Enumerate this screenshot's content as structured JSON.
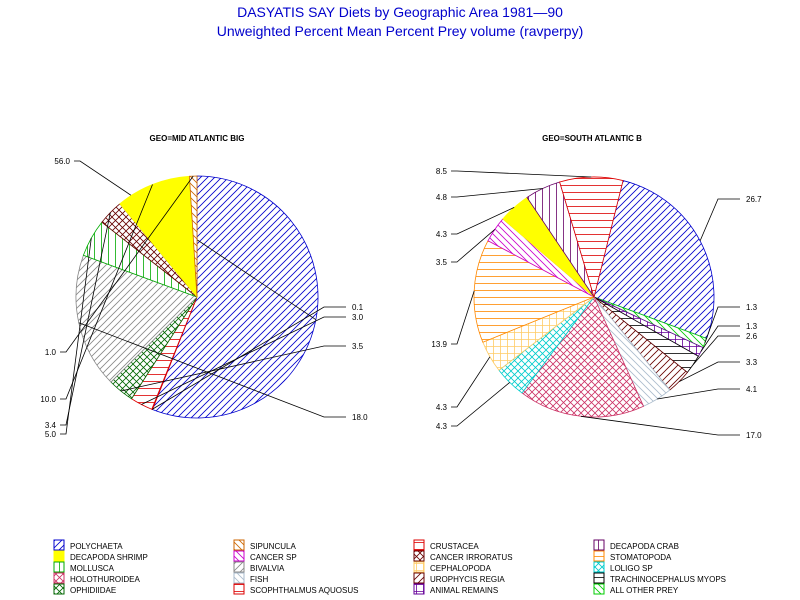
{
  "title": "DASYATIS SAY Diets by Geographic Area 1981—90",
  "subtitle": "Unweighted Percent Mean Percent Prey  volume (ravperpy)",
  "legend": [
    {
      "name": "POLYCHAETA",
      "color": "#0000cc",
      "pattern": "diag-up"
    },
    {
      "name": "SIPUNCULA",
      "color": "#cc6600",
      "pattern": "diag-down"
    },
    {
      "name": "CRUSTACEA",
      "color": "#dd0000",
      "pattern": "horizontal"
    },
    {
      "name": "DECAPODA CRAB",
      "color": "#660066",
      "pattern": "vertical"
    },
    {
      "name": "DECAPODA SHRIMP",
      "color": "#ffff00",
      "pattern": "solid"
    },
    {
      "name": "CANCER SP",
      "color": "#cc00cc",
      "pattern": "diag-down"
    },
    {
      "name": "CANCER IRRORATUS",
      "color": "#660000",
      "pattern": "crosshatch"
    },
    {
      "name": "STOMATOPODA",
      "color": "#ff8800",
      "pattern": "horizontal"
    },
    {
      "name": "MOLLUSCA",
      "color": "#00aa00",
      "pattern": "vertical"
    },
    {
      "name": "BIVALVIA",
      "color": "#888888",
      "pattern": "diag-up"
    },
    {
      "name": "CEPHALOPODA",
      "color": "#ffcc66",
      "pattern": "grid"
    },
    {
      "name": "LOLIGO SP",
      "color": "#00cccc",
      "pattern": "crosshatch"
    },
    {
      "name": "HOLOTHUROIDEA",
      "color": "#cc3366",
      "pattern": "crosshatch"
    },
    {
      "name": "FISH",
      "color": "#aabbcc",
      "pattern": "diag-down"
    },
    {
      "name": "UROPHYCIS REGIA",
      "color": "#660000",
      "pattern": "diag-up"
    },
    {
      "name": "TRACHINOCEPHALUS MYOPS",
      "color": "#000000",
      "pattern": "horizontal"
    },
    {
      "name": "OPHIDIIDAE",
      "color": "#006600",
      "pattern": "crosshatch"
    },
    {
      "name": "SCOPHTHALMUS AQUOSUS",
      "color": "#dd0000",
      "pattern": "horizontal"
    },
    {
      "name": "ANIMAL REMAINS",
      "color": "#660099",
      "pattern": "grid"
    },
    {
      "name": "ALL OTHER PREY",
      "color": "#00cc00",
      "pattern": "diag-down"
    }
  ],
  "chart_data": [
    {
      "type": "pie",
      "title": "GEO=MID ATLANTIC BIG",
      "slices": [
        {
          "label": "POLYCHAETA",
          "value": 56.0,
          "text": "56.0"
        },
        {
          "label": "SCOPHTHALMUS AQUOSUS",
          "value": 0.1,
          "text": "0.1"
        },
        {
          "label": "CRUSTACEA",
          "value": 3.0,
          "text": "3.0"
        },
        {
          "label": "OPHIDIIDAE",
          "value": 3.5,
          "text": "3.5"
        },
        {
          "label": "BIVALVIA",
          "value": 18.0,
          "text": "18.0"
        },
        {
          "label": "MOLLUSCA",
          "value": 5.0,
          "text": "5.0"
        },
        {
          "label": "CANCER IRRORATUS",
          "value": 3.4,
          "text": "3.4"
        },
        {
          "label": "DECAPODA SHRIMP",
          "value": 10.0,
          "text": "10.0"
        },
        {
          "label": "SIPUNCULA",
          "value": 1.0,
          "text": "1.0"
        }
      ]
    },
    {
      "type": "pie",
      "title": "GEO=SOUTH ATLANTIC B",
      "slices": [
        {
          "label": "POLYCHAETA",
          "value": 26.7,
          "text": "26.7"
        },
        {
          "label": "ALL OTHER PREY",
          "value": 1.3,
          "text": "1.3"
        },
        {
          "label": "ANIMAL REMAINS",
          "value": 1.3,
          "text": "1.3"
        },
        {
          "label": "TRACHINOCEPHALUS MYOPS",
          "value": 2.6,
          "text": "2.6"
        },
        {
          "label": "UROPHYCIS REGIA",
          "value": 3.3,
          "text": "3.3"
        },
        {
          "label": "FISH",
          "value": 4.1,
          "text": "4.1"
        },
        {
          "label": "HOLOTHUROIDEA",
          "value": 17.0,
          "text": "17.0"
        },
        {
          "label": "LOLIGO SP",
          "value": 4.3,
          "text": "4.3"
        },
        {
          "label": "CEPHALOPODA",
          "value": 4.3,
          "text": "4.3"
        },
        {
          "label": "STOMATOPODA",
          "value": 13.9,
          "text": "13.9"
        },
        {
          "label": "CANCER SP",
          "value": 3.5,
          "text": "3.5"
        },
        {
          "label": "DECAPODA SHRIMP",
          "value": 4.3,
          "text": "4.3"
        },
        {
          "label": "DECAPODA CRAB",
          "value": 4.8,
          "text": "4.8"
        },
        {
          "label": "CRUSTACEA",
          "value": 8.5,
          "text": "8.5"
        }
      ]
    }
  ]
}
